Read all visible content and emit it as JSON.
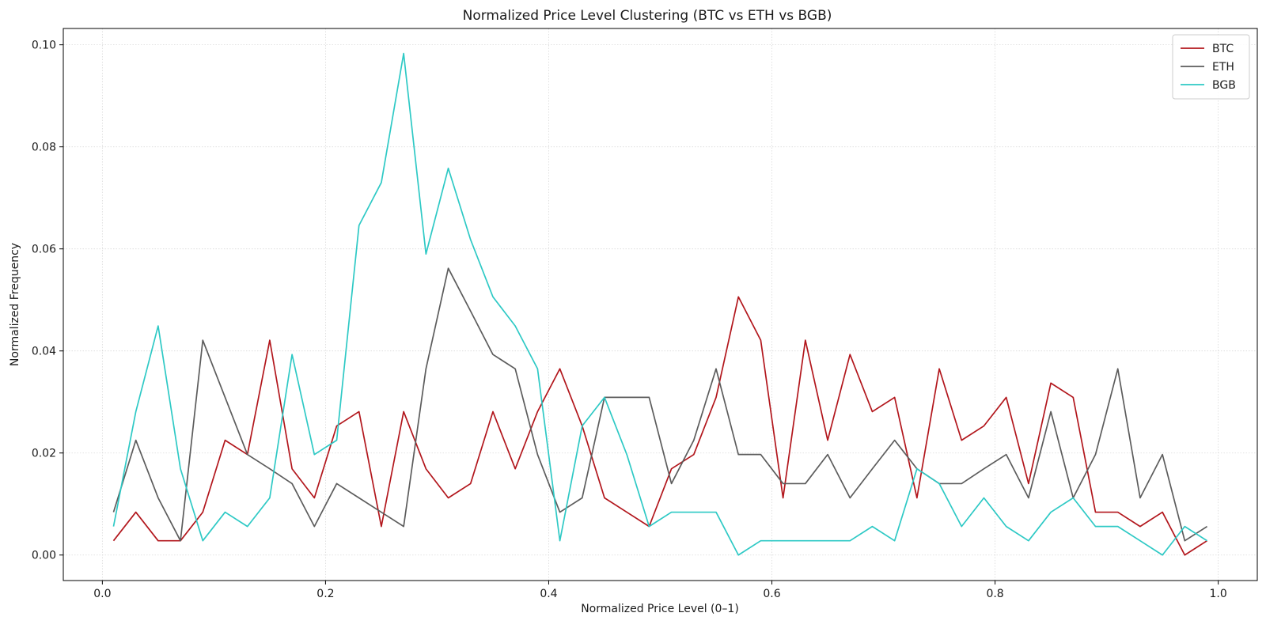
{
  "chart_data": {
    "type": "line",
    "title": "Normalized Price Level Clustering (BTC vs ETH vs BGB)",
    "xlabel": "Normalized Price Level (0–1)",
    "ylabel": "Normalized Frequency",
    "xlim": [
      -0.035,
      1.035
    ],
    "ylim": [
      -0.005,
      0.1032
    ],
    "x_ticks": [
      0.0,
      0.2,
      0.4,
      0.6,
      0.8,
      1.0
    ],
    "x_tick_labels": [
      "0.0",
      "0.2",
      "0.4",
      "0.6",
      "0.8",
      "1.0"
    ],
    "y_ticks": [
      0.0,
      0.02,
      0.04,
      0.06,
      0.08,
      0.1
    ],
    "y_tick_labels": [
      "0.00",
      "0.02",
      "0.04",
      "0.06",
      "0.08",
      "0.10"
    ],
    "grid": true,
    "legend_position": "top-right",
    "x": [
      0.01,
      0.03,
      0.05,
      0.07,
      0.09,
      0.11,
      0.13,
      0.15,
      0.17,
      0.19,
      0.21,
      0.23,
      0.25,
      0.27,
      0.29,
      0.31,
      0.33,
      0.35,
      0.37,
      0.39,
      0.41,
      0.43,
      0.45,
      0.47,
      0.49,
      0.51,
      0.53,
      0.55,
      0.57,
      0.59,
      0.61,
      0.63,
      0.65,
      0.67,
      0.69,
      0.71,
      0.73,
      0.75,
      0.77,
      0.79,
      0.81,
      0.83,
      0.85,
      0.87,
      0.89,
      0.91,
      0.93,
      0.95,
      0.97,
      0.99
    ],
    "series": [
      {
        "name": "BTC",
        "color": "#b2161c",
        "values": [
          0.0028,
          0.0084,
          0.0028,
          0.0028,
          0.0084,
          0.0225,
          0.0197,
          0.0421,
          0.0169,
          0.0112,
          0.0253,
          0.0281,
          0.0056,
          0.0281,
          0.0169,
          0.0112,
          0.014,
          0.0281,
          0.0169,
          0.0281,
          0.0365,
          0.0253,
          0.0112,
          0.0084,
          0.0056,
          0.0169,
          0.0197,
          0.0309,
          0.0506,
          0.0421,
          0.0112,
          0.0421,
          0.0225,
          0.0393,
          0.0281,
          0.0309,
          0.0112,
          0.0365,
          0.0225,
          0.0253,
          0.0309,
          0.014,
          0.0337,
          0.0309,
          0.0084,
          0.0084,
          0.0056,
          0.0084,
          0.0,
          0.0028
        ]
      },
      {
        "name": "ETH",
        "color": "#5c5c5c",
        "values": [
          0.0084,
          0.0225,
          0.0112,
          0.0028,
          0.0421,
          0.0309,
          0.0197,
          0.0169,
          0.014,
          0.0056,
          0.014,
          0.0112,
          0.0084,
          0.0056,
          0.0365,
          0.0562,
          0.0478,
          0.0393,
          0.0365,
          0.0197,
          0.0084,
          0.0112,
          0.0309,
          0.0309,
          0.0309,
          0.014,
          0.0225,
          0.0365,
          0.0197,
          0.0197,
          0.014,
          0.014,
          0.0197,
          0.0112,
          0.0169,
          0.0225,
          0.0169,
          0.014,
          0.014,
          0.0169,
          0.0197,
          0.0112,
          0.0281,
          0.0112,
          0.0197,
          0.0365,
          0.0112,
          0.0197,
          0.0028,
          0.0056
        ]
      },
      {
        "name": "BGB",
        "color": "#2ec9c5",
        "values": [
          0.0056,
          0.0281,
          0.0449,
          0.0169,
          0.0028,
          0.0084,
          0.0056,
          0.0112,
          0.0393,
          0.0197,
          0.0225,
          0.0646,
          0.073,
          0.0983,
          0.059,
          0.0758,
          0.0618,
          0.0506,
          0.0449,
          0.0365,
          0.0028,
          0.0253,
          0.0309,
          0.0197,
          0.0056,
          0.0084,
          0.0084,
          0.0084,
          0.0,
          0.0028,
          0.0028,
          0.0028,
          0.0028,
          0.0028,
          0.0056,
          0.0028,
          0.0169,
          0.014,
          0.0056,
          0.0112,
          0.0056,
          0.0028,
          0.0084,
          0.0112,
          0.0056,
          0.0056,
          0.0028,
          0.0,
          0.0056,
          0.0028
        ]
      }
    ]
  }
}
